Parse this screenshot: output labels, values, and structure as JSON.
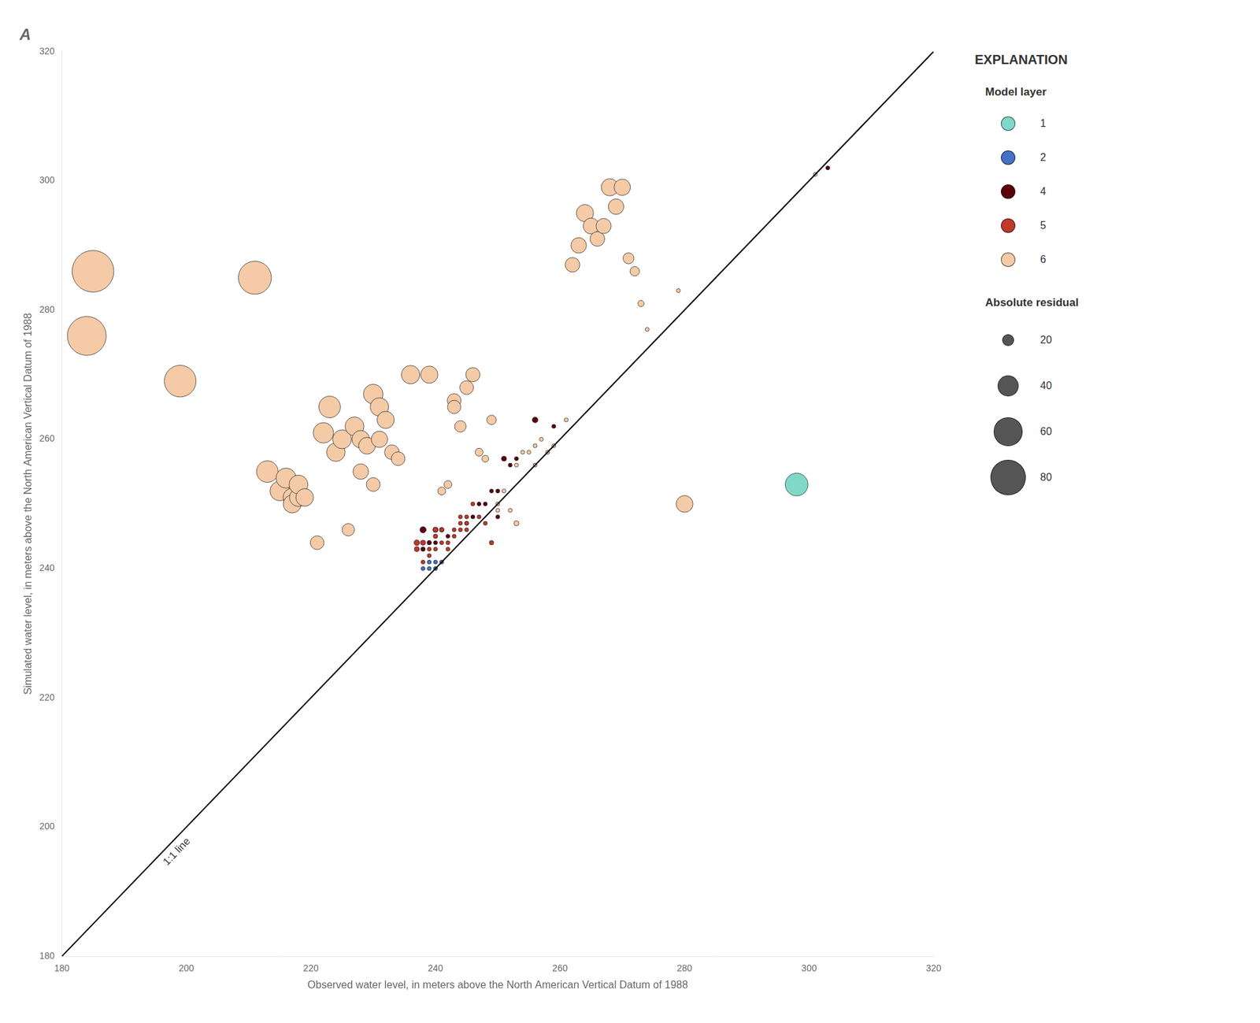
{
  "chart_data": {
    "type": "bubble",
    "title": "A",
    "xlabel": "Observed water level, in meters above the North American Vertical Datum of 1988",
    "ylabel": "Simulated water level, in meters above the North American Vertical Datum of 1988",
    "xlim": [
      180,
      320
    ],
    "ylim": [
      180,
      320
    ],
    "xticks": [
      180,
      200,
      220,
      240,
      260,
      280,
      300,
      320
    ],
    "yticks": [
      180,
      200,
      220,
      240,
      260,
      280,
      300,
      320
    ],
    "grid": false,
    "legend": "right",
    "legend_heading": "EXPLANATION",
    "legend_title": "Model layer",
    "reference_line": {
      "label": "1:1 line"
    },
    "size_legend": {
      "title": "Absolute residual",
      "values": [
        20,
        40,
        60,
        80
      ],
      "color": "#555555"
    },
    "series": [
      {
        "name": "1",
        "color": "#80d9c8",
        "x": [
          298
        ],
        "values": [
          253
        ],
        "residuals": [
          45
        ]
      },
      {
        "name": "2",
        "color": "#4472c4",
        "x": [
          239,
          240,
          241,
          240,
          239,
          238
        ],
        "values": [
          241,
          241,
          241,
          240,
          240,
          240
        ],
        "residuals": [
          2,
          1,
          0,
          0,
          1,
          2
        ]
      },
      {
        "name": "4",
        "color": "#5c0010",
        "x": [
          303,
          256,
          253,
          252,
          251,
          250,
          250,
          249,
          248,
          247,
          246,
          245,
          259,
          242,
          241,
          240,
          240,
          239,
          238,
          238
        ],
        "values": [
          302,
          263,
          257,
          256,
          257,
          252,
          248,
          252,
          250,
          250,
          248,
          247,
          262,
          245,
          246,
          246,
          244,
          244,
          246,
          243
        ],
        "residuals": [
          1,
          7,
          4,
          4,
          6,
          2,
          2,
          3,
          2,
          3,
          2,
          2,
          3,
          3,
          5,
          6,
          4,
          5,
          8,
          5
        ]
      },
      {
        "name": "5",
        "color": "#c0392b",
        "x": [
          249,
          248,
          247,
          245,
          245,
          244,
          244,
          243,
          243,
          242,
          242,
          241,
          240,
          240,
          239,
          238,
          237,
          237,
          238,
          239,
          240,
          241,
          244,
          245,
          246
        ],
        "values": [
          244,
          247,
          248,
          247,
          246,
          248,
          246,
          246,
          245,
          244,
          243,
          244,
          243,
          245,
          242,
          241,
          243,
          244,
          244,
          243,
          246,
          246,
          247,
          248,
          250
        ],
        "residuals": [
          5,
          1,
          1,
          2,
          1,
          4,
          2,
          3,
          2,
          2,
          1,
          3,
          3,
          5,
          3,
          3,
          6,
          7,
          6,
          4,
          6,
          5,
          3,
          3,
          4
        ]
      },
      {
        "name": "6",
        "color": "#f5cba7",
        "x": [
          184,
          185,
          199,
          211,
          213,
          215,
          216,
          217,
          217,
          218,
          218,
          219,
          221,
          222,
          223,
          224,
          225,
          226,
          227,
          228,
          228,
          229,
          230,
          230,
          231,
          231,
          232,
          233,
          234,
          236,
          239,
          241,
          242,
          243,
          243,
          244,
          245,
          246,
          247,
          248,
          249,
          250,
          250,
          251,
          252,
          253,
          253,
          254,
          255,
          256,
          256,
          257,
          258,
          259,
          261,
          262,
          263,
          264,
          265,
          266,
          267,
          268,
          269,
          270,
          271,
          272,
          273,
          274,
          279,
          280,
          301
        ],
        "values": [
          276,
          286,
          269,
          285,
          255,
          252,
          254,
          251,
          250,
          251,
          253,
          251,
          244,
          261,
          265,
          258,
          260,
          246,
          262,
          255,
          260,
          259,
          267,
          253,
          260,
          265,
          263,
          258,
          257,
          270,
          270,
          252,
          253,
          266,
          265,
          262,
          268,
          270,
          258,
          257,
          263,
          250,
          249,
          252,
          249,
          256,
          247,
          258,
          258,
          259,
          256,
          260,
          258,
          259,
          263,
          287,
          290,
          295,
          293,
          291,
          293,
          299,
          296,
          299,
          288,
          286,
          281,
          277,
          283,
          250,
          301
        ],
        "residuals": [
          92,
          101,
          70,
          74,
          42,
          37,
          38,
          34,
          33,
          33,
          35,
          32,
          23,
          39,
          42,
          34,
          35,
          20,
          35,
          27,
          32,
          30,
          37,
          23,
          29,
          34,
          31,
          25,
          23,
          34,
          31,
          11,
          11,
          23,
          22,
          18,
          23,
          24,
          11,
          9,
          14,
          0,
          1,
          1,
          3,
          3,
          6,
          4,
          3,
          3,
          0,
          3,
          0,
          0,
          2,
          25,
          27,
          31,
          28,
          25,
          26,
          31,
          27,
          29,
          17,
          14,
          8,
          3,
          4,
          30,
          0
        ]
      }
    ]
  }
}
